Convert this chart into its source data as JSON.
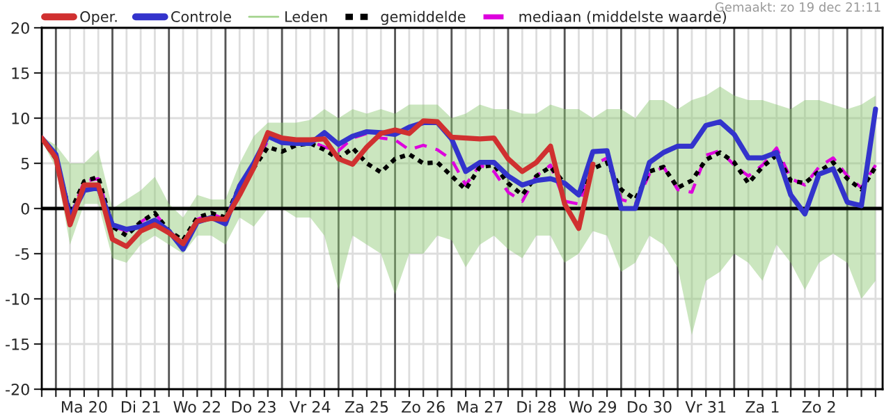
{
  "chart_data": {
    "type": "line",
    "annotations": [
      "Gemaakt: zo 19 dec 21:11"
    ],
    "categories": [
      null,
      null,
      null,
      "Ma 20",
      null,
      null,
      null,
      "Di 21",
      null,
      null,
      null,
      "Wo 22",
      null,
      null,
      null,
      "Do 23",
      null,
      null,
      null,
      "Vr 24",
      null,
      null,
      null,
      "Za 25",
      null,
      null,
      null,
      "Zo 26",
      null,
      null,
      null,
      "Ma 27",
      null,
      null,
      null,
      "Di 28",
      null,
      null,
      null,
      "Wo 29",
      null,
      null,
      null,
      "Do 30",
      null,
      null,
      null,
      "Vr 31",
      null,
      null,
      null,
      "Za 1",
      null,
      null,
      null,
      "Zo 2",
      null,
      null,
      null,
      null
    ],
    "series": [
      {
        "name": "Oper.",
        "color": "#d03030",
        "line_style": "solid",
        "values": [
          7.8,
          5.6,
          -1.8,
          2.6,
          2.6,
          -3.4,
          -4.2,
          -2.5,
          -1.8,
          -2.7,
          -3.9,
          -1.4,
          -1.1,
          -1.2,
          1.5,
          4.5,
          8.4,
          7.8,
          7.6,
          7.6,
          7.7,
          5.5,
          4.9,
          6.8,
          8.3,
          8.7,
          8.3,
          9.7,
          9.6,
          7.9,
          7.8,
          7.7,
          7.8,
          5.5,
          4.1,
          5.1,
          6.9,
          0.5,
          -2.2,
          4.9,
          null,
          null,
          null,
          null,
          null,
          null,
          null,
          null,
          null,
          null,
          null,
          null,
          null,
          null,
          null,
          null,
          null,
          null,
          null,
          null
        ]
      },
      {
        "name": "Controle",
        "color": "#3333cc",
        "line_style": "solid",
        "values": [
          7.8,
          6,
          -1,
          2,
          2.3,
          -1.8,
          -2.3,
          -2,
          -1.3,
          -2.5,
          -4.5,
          -1.5,
          -1,
          -1.7,
          2.5,
          5,
          8,
          7.3,
          7.2,
          7.2,
          8.4,
          7.1,
          8,
          8.5,
          8.4,
          8.2,
          9,
          9.5,
          9.5,
          7.7,
          4.1,
          5.1,
          5.1,
          3.6,
          2.6,
          3.1,
          3.3,
          2.8,
          1.5,
          6.3,
          6.4,
          0,
          0,
          5.1,
          6.2,
          6.9,
          6.9,
          9.2,
          9.6,
          8.2,
          5.6,
          5.6,
          6.2,
          1.5,
          -0.6,
          3.8,
          4.4,
          0.7,
          0.3,
          11
        ]
      },
      {
        "name": "Leden",
        "color": "#8cc870",
        "values": [
          null,
          null,
          null,
          null,
          null,
          null,
          null,
          null,
          null,
          null,
          null,
          null,
          null,
          null,
          null,
          null,
          null,
          null,
          null,
          null,
          null,
          null,
          null,
          null,
          null,
          null,
          null,
          null,
          null,
          null,
          null,
          null,
          null,
          null,
          null,
          null,
          null,
          null,
          null,
          null,
          null,
          null,
          null,
          null,
          null,
          null,
          null,
          null,
          null,
          null,
          null,
          null,
          null,
          null,
          null,
          null,
          null,
          null,
          null,
          null
        ],
        "lower": [
          7.5,
          4.5,
          -4,
          0.5,
          0.5,
          -5.5,
          -6,
          -4,
          -3,
          -4,
          -5,
          -3,
          -3,
          -4,
          -1,
          -2,
          0,
          0,
          -1,
          -1,
          -3,
          -9,
          -3,
          -4,
          -5,
          -9.5,
          -5,
          -5,
          -3,
          -3.5,
          -6.5,
          -4,
          -3,
          -4.5,
          -5.5,
          -3,
          -3,
          -6,
          -5,
          -2.5,
          -3,
          -7,
          -6,
          -3,
          -4,
          -6.5,
          -14,
          -8,
          -7,
          -5,
          -6,
          -8,
          -4,
          -6,
          -9,
          -6,
          -5,
          -6,
          -10,
          -8
        ],
        "upper": [
          8,
          7,
          5,
          5,
          6.5,
          0,
          1,
          2,
          3.5,
          0.5,
          -1,
          1.5,
          1,
          1,
          5,
          8,
          9.5,
          9.5,
          9.5,
          9.8,
          11,
          10,
          11,
          10.5,
          11,
          10.5,
          11.5,
          11.5,
          11.5,
          10,
          10.5,
          11.5,
          11,
          11,
          10.5,
          10.5,
          11.5,
          11,
          11,
          10,
          11,
          11,
          10,
          12,
          12,
          11,
          12,
          12.5,
          13.5,
          12.5,
          12,
          12,
          11.5,
          11,
          12,
          12,
          11.5,
          11,
          11.5,
          12.5
        ]
      },
      {
        "name": "gemiddelde",
        "color": "#000000",
        "line_style": "dotted",
        "values": [
          7.8,
          5.5,
          -0.5,
          3,
          3.5,
          -2,
          -3,
          -1.5,
          -0.5,
          -2.5,
          -3.5,
          -1,
          -0.5,
          -1,
          2.5,
          4.5,
          6.8,
          6.3,
          7,
          7.2,
          6.5,
          5.5,
          6.7,
          5,
          4,
          5.5,
          6,
          5,
          5.1,
          3.6,
          2.1,
          4.6,
          4.8,
          2.8,
          1.5,
          3.6,
          4.6,
          2.8,
          1.5,
          4.4,
          5.1,
          2.1,
          1,
          4.1,
          4.6,
          2.3,
          3.1,
          5.4,
          6.2,
          5.1,
          2.8,
          4.6,
          5.9,
          3.1,
          2.8,
          4.1,
          5.1,
          3.3,
          2.1,
          4.6
        ]
      },
      {
        "name": "mediaan (middelste waarde)",
        "color": "#dd00dd",
        "line_style": "dashed",
        "values": [
          7.8,
          5.5,
          -1,
          3,
          3.3,
          -2,
          -2.5,
          -1.5,
          -0.5,
          -2.5,
          -3.8,
          -1.2,
          -0.6,
          -1.2,
          2.5,
          4.8,
          7.5,
          7.5,
          7.5,
          7.5,
          6.8,
          6.4,
          7.8,
          8.3,
          7.8,
          7.6,
          6.5,
          7,
          6.5,
          5.4,
          2.6,
          4.8,
          4.1,
          1.8,
          0.8,
          3.6,
          4.8,
          0.8,
          0.5,
          4.8,
          5.6,
          1,
          0.5,
          3.8,
          4.6,
          2.1,
          1.8,
          5.9,
          6.4,
          4.8,
          3.6,
          4.8,
          6.7,
          3.3,
          2.6,
          4.6,
          5.6,
          3.6,
          2.3,
          4.8
        ]
      }
    ],
    "ylim": [
      -20,
      20
    ],
    "yticks": [
      -20,
      -15,
      -10,
      -5,
      0,
      5,
      10,
      15,
      20
    ],
    "grid": true,
    "legend": "top",
    "ref_lines": [
      {
        "axis": "y",
        "value": 0,
        "color": "#000000"
      }
    ]
  }
}
